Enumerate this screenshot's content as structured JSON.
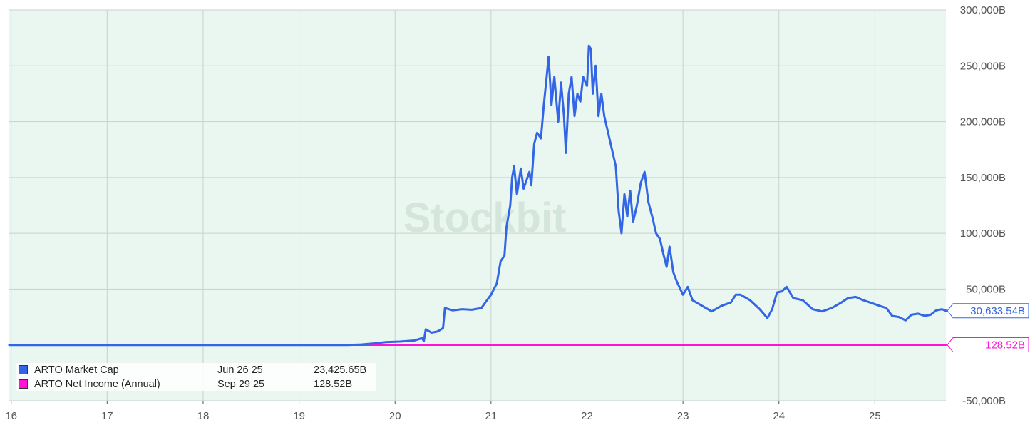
{
  "chart_data": {
    "type": "line",
    "watermark": "Stockbit",
    "x_ticks": [
      "16",
      "17",
      "18",
      "19",
      "20",
      "21",
      "22",
      "23",
      "24",
      "25"
    ],
    "y_ticks": [
      "300,000B",
      "250,000B",
      "200,000B",
      "150,000B",
      "100,000B",
      "50,000B",
      "-50,000B"
    ],
    "xlim": [
      15.98,
      25.74
    ],
    "ylim": [
      -50000,
      300000
    ],
    "y_unit": "B",
    "background": "#eaf7f0",
    "grid": true,
    "legend_position": "bottom-left",
    "series": [
      {
        "name": "ARTO Market Cap",
        "color": "#3366e6",
        "last_value_label": "30,633.54B",
        "legend_date": "Jun 26 25",
        "legend_value": "23,425.65B",
        "points": [
          [
            15.98,
            0
          ],
          [
            16.5,
            0
          ],
          [
            17.0,
            0
          ],
          [
            17.5,
            0
          ],
          [
            18.0,
            0
          ],
          [
            18.5,
            0
          ],
          [
            19.0,
            0
          ],
          [
            19.5,
            0
          ],
          [
            19.65,
            400
          ],
          [
            19.8,
            1500
          ],
          [
            19.9,
            2500
          ],
          [
            20.05,
            3000
          ],
          [
            20.2,
            4000
          ],
          [
            20.28,
            6000
          ],
          [
            20.3,
            3500
          ],
          [
            20.32,
            14000
          ],
          [
            20.38,
            11000
          ],
          [
            20.44,
            12000
          ],
          [
            20.5,
            15000
          ],
          [
            20.52,
            33000
          ],
          [
            20.6,
            31000
          ],
          [
            20.7,
            32000
          ],
          [
            20.8,
            31500
          ],
          [
            20.9,
            33000
          ],
          [
            20.94,
            38000
          ],
          [
            21.0,
            45000
          ],
          [
            21.06,
            55000
          ],
          [
            21.1,
            75000
          ],
          [
            21.14,
            80000
          ],
          [
            21.16,
            105000
          ],
          [
            21.2,
            125000
          ],
          [
            21.22,
            150000
          ],
          [
            21.24,
            160000
          ],
          [
            21.27,
            135000
          ],
          [
            21.31,
            158000
          ],
          [
            21.34,
            140000
          ],
          [
            21.4,
            155000
          ],
          [
            21.42,
            143000
          ],
          [
            21.45,
            180000
          ],
          [
            21.48,
            190000
          ],
          [
            21.52,
            185000
          ],
          [
            21.55,
            215000
          ],
          [
            21.58,
            240000
          ],
          [
            21.6,
            258000
          ],
          [
            21.63,
            215000
          ],
          [
            21.66,
            240000
          ],
          [
            21.7,
            200000
          ],
          [
            21.73,
            235000
          ],
          [
            21.76,
            205000
          ],
          [
            21.78,
            172000
          ],
          [
            21.81,
            225000
          ],
          [
            21.84,
            240000
          ],
          [
            21.87,
            205000
          ],
          [
            21.9,
            225000
          ],
          [
            21.93,
            218000
          ],
          [
            21.96,
            240000
          ],
          [
            22.0,
            232000
          ],
          [
            22.02,
            268000
          ],
          [
            22.04,
            265000
          ],
          [
            22.06,
            225000
          ],
          [
            22.09,
            250000
          ],
          [
            22.12,
            205000
          ],
          [
            22.15,
            225000
          ],
          [
            22.18,
            205000
          ],
          [
            22.22,
            190000
          ],
          [
            22.26,
            175000
          ],
          [
            22.3,
            160000
          ],
          [
            22.33,
            120000
          ],
          [
            22.36,
            100000
          ],
          [
            22.39,
            135000
          ],
          [
            22.42,
            115000
          ],
          [
            22.45,
            138000
          ],
          [
            22.48,
            110000
          ],
          [
            22.52,
            125000
          ],
          [
            22.56,
            145000
          ],
          [
            22.6,
            155000
          ],
          [
            22.64,
            128000
          ],
          [
            22.68,
            115000
          ],
          [
            22.72,
            100000
          ],
          [
            22.76,
            95000
          ],
          [
            22.8,
            80000
          ],
          [
            22.83,
            70000
          ],
          [
            22.86,
            88000
          ],
          [
            22.9,
            65000
          ],
          [
            22.94,
            56000
          ],
          [
            23.0,
            45000
          ],
          [
            23.05,
            52000
          ],
          [
            23.1,
            40000
          ],
          [
            23.2,
            35000
          ],
          [
            23.3,
            30000
          ],
          [
            23.4,
            35000
          ],
          [
            23.5,
            38000
          ],
          [
            23.55,
            45000
          ],
          [
            23.6,
            45000
          ],
          [
            23.7,
            40000
          ],
          [
            23.8,
            32000
          ],
          [
            23.88,
            24000
          ],
          [
            23.93,
            32000
          ],
          [
            23.98,
            47000
          ],
          [
            24.03,
            48000
          ],
          [
            24.08,
            52000
          ],
          [
            24.15,
            42000
          ],
          [
            24.25,
            40000
          ],
          [
            24.35,
            32000
          ],
          [
            24.45,
            30000
          ],
          [
            24.55,
            33000
          ],
          [
            24.65,
            38000
          ],
          [
            24.72,
            42000
          ],
          [
            24.8,
            43000
          ],
          [
            24.88,
            40000
          ],
          [
            24.95,
            38000
          ],
          [
            25.05,
            35000
          ],
          [
            25.12,
            33000
          ],
          [
            25.18,
            26000
          ],
          [
            25.25,
            25000
          ],
          [
            25.32,
            22000
          ],
          [
            25.38,
            27000
          ],
          [
            25.45,
            28000
          ],
          [
            25.52,
            26000
          ],
          [
            25.58,
            27000
          ],
          [
            25.64,
            31000
          ],
          [
            25.7,
            32000
          ],
          [
            25.74,
            30634
          ]
        ]
      },
      {
        "name": "ARTO Net Income (Annual)",
        "color": "#ff11d6",
        "last_value_label": "128.52B",
        "legend_date": "Sep 29 25",
        "legend_value": "128.52B",
        "points": [
          [
            15.98,
            128.52
          ],
          [
            25.74,
            128.52
          ]
        ]
      }
    ]
  }
}
